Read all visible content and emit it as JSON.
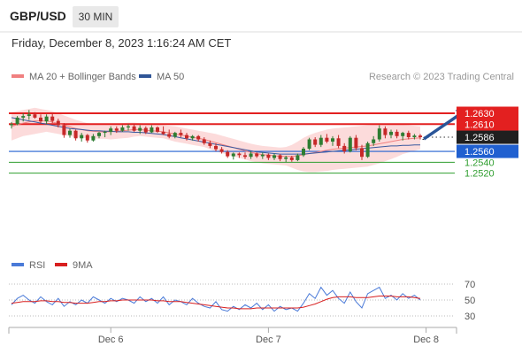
{
  "header": {
    "pair": "GBP/USD",
    "timeframe": "30 MIN"
  },
  "timestamp": "Friday, December 8, 2023 1:16:24 AM CET",
  "copyright": "Research © 2023 Trading Central",
  "colors": {
    "candle_up": "#2e7d32",
    "candle_down": "#c62828",
    "resistance": "#e32020",
    "support": "#2060d0",
    "target": "#2f9e2f",
    "ma20": "#f08080",
    "ma50": "#3a5aa0",
    "band_fill": "#fbd2d2",
    "arrow": "#2a5598",
    "rsi": "#4a7ad8",
    "rsi_ma": "#d81f1f",
    "current_price_bg": "#1f1f1f"
  },
  "chart_data": [
    {
      "type": "candlestick",
      "title": "GBP/USD",
      "legend": [
        {
          "name": "MA 20 + Bollinger Bands",
          "color": "#f08080"
        },
        {
          "name": "MA 50",
          "color": "#2f5597"
        }
      ],
      "x_ticks": [
        {
          "label": "Dec 6",
          "index": 17
        },
        {
          "label": "Dec 7",
          "index": 44
        },
        {
          "label": "Dec 8",
          "index": 71
        }
      ],
      "ylim": [
        1.2508,
        1.2642
      ],
      "levels": [
        {
          "label": "1.2630",
          "value": 1.263,
          "kind": "resistance"
        },
        {
          "label": "1.2610",
          "value": 1.261,
          "kind": "resistance"
        },
        {
          "label": "1.2586",
          "value": 1.2586,
          "kind": "current"
        },
        {
          "label": "1.2560",
          "value": 1.256,
          "kind": "support"
        },
        {
          "label": "1.2540",
          "value": 1.254,
          "kind": "target"
        },
        {
          "label": "1.2520",
          "value": 1.252,
          "kind": "target"
        }
      ],
      "arrow_projection": {
        "from_index": 70,
        "from": 1.2586,
        "to_index": 76,
        "to": 1.263
      },
      "candles": [
        [
          1.2608,
          1.2614,
          1.2602,
          1.261
        ],
        [
          1.261,
          1.2625,
          1.2608,
          1.2622
        ],
        [
          1.2622,
          1.263,
          1.2615,
          1.2625
        ],
        [
          1.2625,
          1.2636,
          1.2618,
          1.2628
        ],
        [
          1.2628,
          1.2632,
          1.262,
          1.2622
        ],
        [
          1.2622,
          1.2628,
          1.2612,
          1.2615
        ],
        [
          1.2615,
          1.2628,
          1.261,
          1.2624
        ],
        [
          1.2624,
          1.263,
          1.2612,
          1.2616
        ],
        [
          1.2616,
          1.262,
          1.2604,
          1.2608
        ],
        [
          1.2608,
          1.2612,
          1.2585,
          1.259
        ],
        [
          1.259,
          1.2602,
          1.2585,
          1.2598
        ],
        [
          1.2598,
          1.26,
          1.258,
          1.2584
        ],
        [
          1.2584,
          1.2594,
          1.2578,
          1.259
        ],
        [
          1.259,
          1.2592,
          1.2576,
          1.258
        ],
        [
          1.258,
          1.2592,
          1.2578,
          1.2588
        ],
        [
          1.2588,
          1.2596,
          1.2584,
          1.2594
        ],
        [
          1.2594,
          1.2598,
          1.2586,
          1.2596
        ],
        [
          1.2596,
          1.2606,
          1.259,
          1.2602
        ],
        [
          1.2602,
          1.2606,
          1.2594,
          1.2598
        ],
        [
          1.2598,
          1.2608,
          1.2596,
          1.2604
        ],
        [
          1.2604,
          1.261,
          1.2598,
          1.2606
        ],
        [
          1.2606,
          1.261,
          1.2596,
          1.2598
        ],
        [
          1.2598,
          1.2608,
          1.2592,
          1.2603
        ],
        [
          1.2603,
          1.2606,
          1.2592,
          1.2595
        ],
        [
          1.2595,
          1.2608,
          1.2594,
          1.2604
        ],
        [
          1.2604,
          1.2606,
          1.2594,
          1.2596
        ],
        [
          1.2596,
          1.2606,
          1.259,
          1.2592
        ],
        [
          1.2592,
          1.26,
          1.2584,
          1.2587
        ],
        [
          1.2587,
          1.2596,
          1.2584,
          1.2594
        ],
        [
          1.2594,
          1.26,
          1.2586,
          1.259
        ],
        [
          1.259,
          1.2594,
          1.258,
          1.2584
        ],
        [
          1.2584,
          1.259,
          1.258,
          1.2588
        ],
        [
          1.2588,
          1.259,
          1.2578,
          1.2582
        ],
        [
          1.2582,
          1.2586,
          1.2572,
          1.2575
        ],
        [
          1.2575,
          1.258,
          1.2566,
          1.257
        ],
        [
          1.257,
          1.2575,
          1.256,
          1.2564
        ],
        [
          1.2564,
          1.2568,
          1.2556,
          1.2559
        ],
        [
          1.2559,
          1.2562,
          1.2548,
          1.2551
        ],
        [
          1.2551,
          1.2558,
          1.2545,
          1.2556
        ],
        [
          1.2556,
          1.2558,
          1.2548,
          1.2553
        ],
        [
          1.2553,
          1.2558,
          1.2546,
          1.255
        ],
        [
          1.255,
          1.256,
          1.2546,
          1.2556
        ],
        [
          1.2556,
          1.2558,
          1.2548,
          1.2551
        ],
        [
          1.2551,
          1.2558,
          1.2546,
          1.2554
        ],
        [
          1.2554,
          1.2556,
          1.2544,
          1.2548
        ],
        [
          1.2548,
          1.2556,
          1.2544,
          1.2553
        ],
        [
          1.2553,
          1.2555,
          1.2542,
          1.2546
        ],
        [
          1.2546,
          1.2552,
          1.254,
          1.2549
        ],
        [
          1.2549,
          1.2552,
          1.2541,
          1.2544
        ],
        [
          1.2544,
          1.2556,
          1.2542,
          1.2553
        ],
        [
          1.2553,
          1.2568,
          1.255,
          1.2565
        ],
        [
          1.2565,
          1.2585,
          1.2562,
          1.2582
        ],
        [
          1.2582,
          1.2586,
          1.2568,
          1.2572
        ],
        [
          1.2572,
          1.259,
          1.2568,
          1.2585
        ],
        [
          1.2585,
          1.2592,
          1.2575,
          1.2578
        ],
        [
          1.2578,
          1.2588,
          1.257,
          1.2584
        ],
        [
          1.2584,
          1.259,
          1.2566,
          1.257
        ],
        [
          1.257,
          1.2575,
          1.2556,
          1.256
        ],
        [
          1.256,
          1.2588,
          1.2558,
          1.2585
        ],
        [
          1.2585,
          1.259,
          1.2562,
          1.2566
        ],
        [
          1.2566,
          1.2572,
          1.2544,
          1.255
        ],
        [
          1.255,
          1.2578,
          1.2548,
          1.2575
        ],
        [
          1.2575,
          1.2588,
          1.257,
          1.2582
        ],
        [
          1.2582,
          1.2608,
          1.2578,
          1.2602
        ],
        [
          1.2602,
          1.2606,
          1.2584,
          1.259
        ],
        [
          1.259,
          1.26,
          1.2584,
          1.2596
        ],
        [
          1.2596,
          1.26,
          1.2584,
          1.2588
        ],
        [
          1.2588,
          1.2596,
          1.258,
          1.2594
        ],
        [
          1.2594,
          1.2598,
          1.2582,
          1.2586
        ],
        [
          1.2586,
          1.2592,
          1.2582,
          1.2589
        ],
        [
          1.2589,
          1.2592,
          1.2582,
          1.2586
        ]
      ],
      "ma20": [
        1.2606,
        1.2609,
        1.2612,
        1.2614,
        1.2616,
        1.2616,
        1.2616,
        1.2614,
        1.2611,
        1.2608,
        1.2605,
        1.2602,
        1.26,
        1.2598,
        1.2597,
        1.2596,
        1.2596,
        1.2596,
        1.2597,
        1.2598,
        1.2599,
        1.26,
        1.26,
        1.2599,
        1.2598,
        1.2597,
        1.2596,
        1.2594,
        1.2592,
        1.259,
        1.2588,
        1.2586,
        1.2584,
        1.2582,
        1.2579,
        1.2576,
        1.2573,
        1.257,
        1.2567,
        1.2564,
        1.2561,
        1.2558,
        1.2556,
        1.2554,
        1.2553,
        1.2552,
        1.2551,
        1.2551,
        1.2551,
        1.2552,
        1.2554,
        1.2556,
        1.2558,
        1.256,
        1.2562,
        1.2564,
        1.2565,
        1.2566,
        1.2567,
        1.2568,
        1.2569,
        1.257,
        1.2572,
        1.2574,
        1.2576,
        1.2578,
        1.258,
        1.2582,
        1.2583,
        1.2584,
        1.2585
      ],
      "bb_upper": [
        1.2632,
        1.2634,
        1.2636,
        1.2638,
        1.264,
        1.2638,
        1.2636,
        1.2634,
        1.263,
        1.2626,
        1.2622,
        1.2618,
        1.2615,
        1.2612,
        1.261,
        1.2609,
        1.2609,
        1.261,
        1.2611,
        1.2612,
        1.2613,
        1.2613,
        1.2612,
        1.2611,
        1.261,
        1.2609,
        1.2608,
        1.2607,
        1.2606,
        1.2604,
        1.2602,
        1.26,
        1.2598,
        1.2596,
        1.2594,
        1.2592,
        1.2589,
        1.2586,
        1.2583,
        1.258,
        1.2577,
        1.2574,
        1.2572,
        1.257,
        1.2569,
        1.2568,
        1.2567,
        1.2568,
        1.2572,
        1.2578,
        1.2585,
        1.259,
        1.2594,
        1.2597,
        1.26,
        1.2602,
        1.2603,
        1.2604,
        1.2605,
        1.2606,
        1.2607,
        1.2608,
        1.2609,
        1.261,
        1.261,
        1.261,
        1.261,
        1.2609,
        1.2608,
        1.2607,
        1.2606
      ],
      "bb_lower": [
        1.258,
        1.2584,
        1.2588,
        1.259,
        1.2592,
        1.2594,
        1.2596,
        1.2594,
        1.2592,
        1.259,
        1.2588,
        1.2586,
        1.2585,
        1.2584,
        1.2584,
        1.2583,
        1.2583,
        1.2582,
        1.2583,
        1.2584,
        1.2585,
        1.2587,
        1.2588,
        1.2587,
        1.2586,
        1.2585,
        1.2584,
        1.2581,
        1.2578,
        1.2576,
        1.2574,
        1.2572,
        1.257,
        1.2568,
        1.2564,
        1.256,
        1.2557,
        1.2554,
        1.2551,
        1.2548,
        1.2545,
        1.2542,
        1.254,
        1.2538,
        1.2537,
        1.2536,
        1.2535,
        1.2534,
        1.253,
        1.2526,
        1.2523,
        1.2522,
        1.2522,
        1.2523,
        1.2524,
        1.2526,
        1.2527,
        1.2528,
        1.2529,
        1.253,
        1.2531,
        1.2532,
        1.2535,
        1.2538,
        1.2542,
        1.2546,
        1.255,
        1.2555,
        1.2558,
        1.2561,
        1.2564
      ],
      "ma50": [
        1.2622,
        1.262,
        1.2618,
        1.2616,
        1.2614,
        1.2612,
        1.261,
        1.2608,
        1.2606,
        1.2604,
        1.2602,
        1.2601,
        1.26,
        1.2599,
        1.2598,
        1.2598,
        1.2597,
        1.2597,
        1.2596,
        1.2596,
        1.2596,
        1.2595,
        1.2595,
        1.2594,
        1.2593,
        1.2592,
        1.2591,
        1.2589,
        1.2587,
        1.2585,
        1.2583,
        1.2581,
        1.2579,
        1.2577,
        1.2575,
        1.2573,
        1.2571,
        1.2569,
        1.2567,
        1.2565,
        1.2563,
        1.2561,
        1.2559,
        1.2558,
        1.2557,
        1.2556,
        1.2555,
        1.2555,
        1.2555,
        1.2555,
        1.2555,
        1.2556,
        1.2557,
        1.2558,
        1.2559,
        1.256,
        1.2561,
        1.2562,
        1.2563,
        1.2564,
        1.2565,
        1.2566,
        1.2567,
        1.2568,
        1.2569,
        1.257,
        1.257,
        1.2571,
        1.2571,
        1.2572,
        1.2572
      ]
    },
    {
      "type": "line",
      "legend": [
        {
          "name": "RSI",
          "color": "#4a7ad8"
        },
        {
          "name": "9MA",
          "color": "#d81f1f"
        }
      ],
      "y_ticks": [
        {
          "label": "70",
          "value": 70
        },
        {
          "label": "50",
          "value": 50
        },
        {
          "label": "30",
          "value": 30
        }
      ],
      "ylim": [
        22,
        78
      ],
      "rsi": [
        44,
        52,
        56,
        50,
        46,
        54,
        48,
        44,
        52,
        42,
        48,
        44,
        50,
        46,
        54,
        50,
        46,
        52,
        48,
        52,
        50,
        46,
        54,
        48,
        52,
        46,
        54,
        44,
        50,
        48,
        44,
        52,
        46,
        42,
        40,
        48,
        38,
        36,
        42,
        38,
        44,
        40,
        46,
        38,
        44,
        36,
        42,
        38,
        40,
        36,
        46,
        58,
        52,
        66,
        56,
        62,
        52,
        46,
        60,
        48,
        40,
        58,
        62,
        66,
        52,
        56,
        50,
        58,
        52,
        56,
        50
      ],
      "rsi_ma": [
        46,
        47,
        48,
        48,
        48,
        49,
        49,
        48,
        48,
        47,
        47,
        46,
        46,
        46,
        47,
        48,
        48,
        49,
        49,
        50,
        50,
        50,
        50,
        50,
        50,
        49,
        49,
        48,
        48,
        48,
        47,
        46,
        45,
        44,
        43,
        42,
        41,
        40,
        40,
        39,
        39,
        39,
        40,
        40,
        40,
        40,
        40,
        40,
        40,
        40,
        41,
        43,
        45,
        48,
        51,
        53,
        54,
        54,
        54,
        53,
        53,
        53,
        54,
        55,
        55,
        55,
        54,
        54,
        54,
        53,
        52
      ]
    }
  ]
}
